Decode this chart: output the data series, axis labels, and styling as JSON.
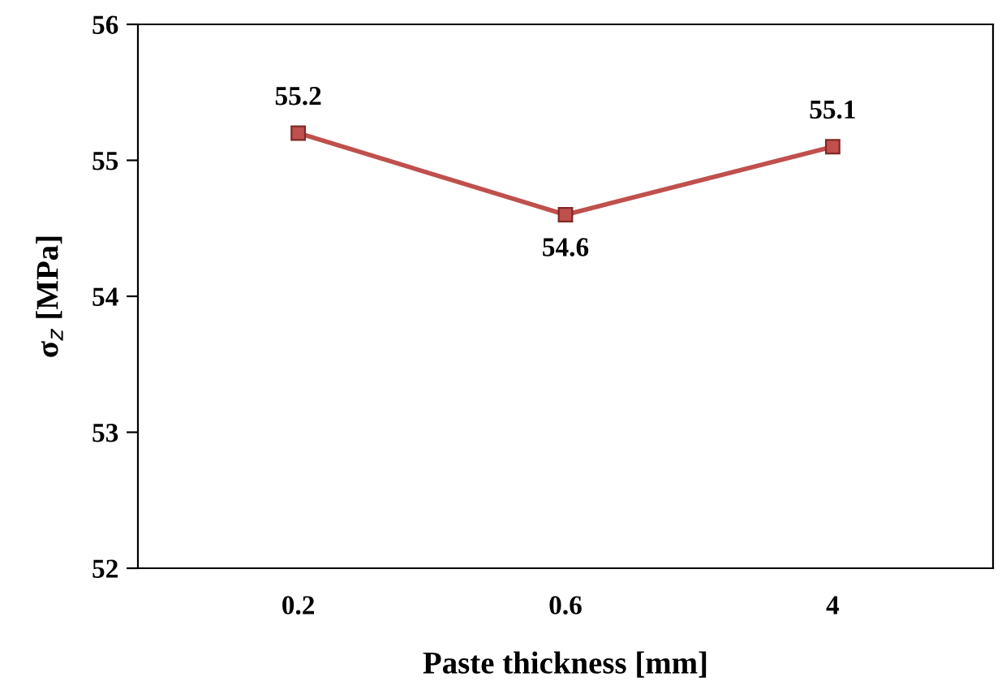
{
  "chart_data": {
    "type": "line",
    "xlabel": "Paste thickness [mm]",
    "ylabel": "σ$_{z}$ [MPa]",
    "categories": [
      "0.2",
      "0.6",
      "4"
    ],
    "series": [
      {
        "color": "#c0504d",
        "values": [
          55.2,
          54.6,
          55.1
        ]
      }
    ],
    "ylim": [
      52,
      56
    ],
    "yticks": [
      52,
      53,
      54,
      55,
      56
    ],
    "marker": "square",
    "line_style": "solid",
    "data_labels": true,
    "grid": false,
    "legend": false
  }
}
